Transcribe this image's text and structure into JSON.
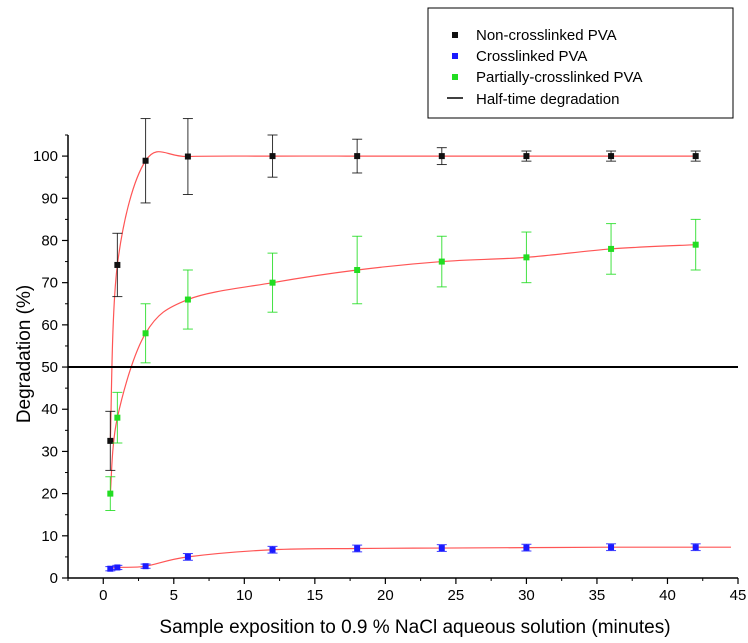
{
  "chart_data": {
    "type": "scatter",
    "title": "",
    "xlabel": "Sample exposition to 0.9 % NaCl aqueous solution (minutes)",
    "ylabel": "Degradation (%)",
    "xlim": [
      -2.5,
      45
    ],
    "ylim": [
      0,
      105
    ],
    "x_ticks": [
      "0",
      "5",
      "10",
      "15",
      "20",
      "25",
      "30",
      "35",
      "40",
      "45"
    ],
    "y_ticks": [
      "0",
      "10",
      "20",
      "30",
      "40",
      "50",
      "60",
      "70",
      "80",
      "90",
      "100"
    ],
    "grid": false,
    "legend_position": "top-right",
    "reference_line": {
      "name": "Half-time degradation",
      "y": 50,
      "color": "#000000"
    },
    "fit_color": "#ff5555",
    "series": [
      {
        "name": "Non-crosslinked PVA",
        "color": "#111111",
        "x": [
          0.5,
          1,
          3,
          6,
          12,
          18,
          24,
          30,
          36,
          42
        ],
        "y": [
          32.5,
          74.2,
          98.9,
          99.9,
          100,
          100,
          100,
          100,
          100,
          100
        ],
        "err": [
          7,
          7.5,
          10,
          9,
          5,
          4,
          2,
          1.2,
          1.2,
          1.2
        ]
      },
      {
        "name": "Crosslinked PVA",
        "color": "#1a1aff",
        "x": [
          0.5,
          1,
          3,
          6,
          12,
          18,
          24,
          30,
          36,
          42
        ],
        "y": [
          2.2,
          2.5,
          2.8,
          5,
          6.7,
          7,
          7.1,
          7.2,
          7.3,
          7.3
        ],
        "err": [
          0.5,
          0.5,
          0.5,
          0.8,
          0.8,
          0.8,
          0.8,
          0.8,
          0.8,
          0.8
        ]
      },
      {
        "name": "Partially-crosslinked PVA",
        "color": "#22dd22",
        "x": [
          0.5,
          1,
          3,
          6,
          12,
          18,
          24,
          30,
          36,
          42
        ],
        "y": [
          20,
          38,
          58,
          66,
          70,
          73,
          75,
          76,
          78,
          79
        ],
        "err": [
          4,
          6,
          7,
          7,
          7,
          8,
          6,
          6,
          6,
          6
        ]
      }
    ]
  }
}
